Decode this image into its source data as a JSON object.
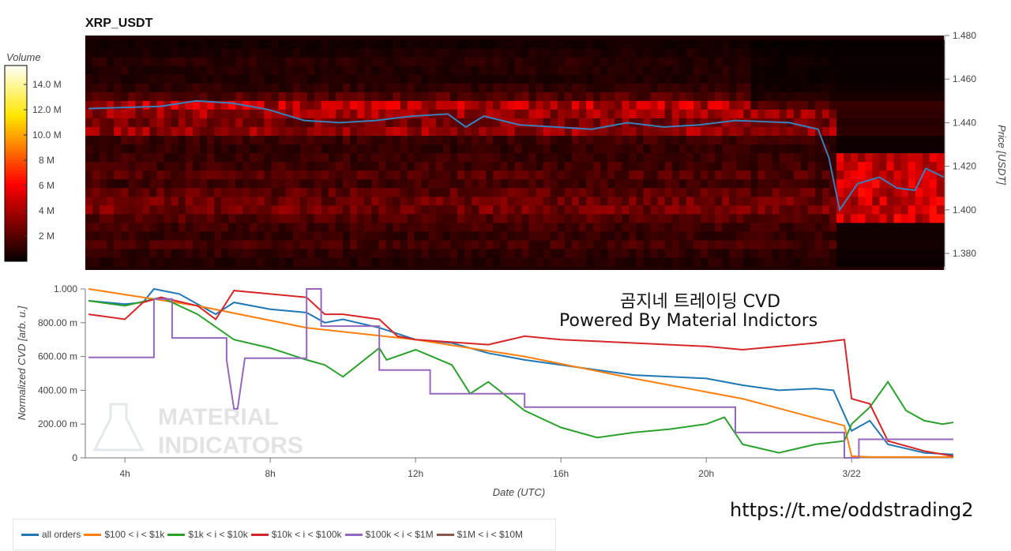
{
  "title": "XRP_USDT",
  "overlay": {
    "line1": "곰지네 트레이딩 CVD",
    "line2": "Powered By Material Indictors",
    "link": "https://t.me/oddstrading2"
  },
  "watermark": {
    "line1": "MATERIAL",
    "line2": "INDICATORS"
  },
  "colorbar": {
    "title": "Volume",
    "ticks": [
      {
        "v": 2,
        "label": "2 M"
      },
      {
        "v": 4,
        "label": "4 M"
      },
      {
        "v": 6,
        "label": "6 M"
      },
      {
        "v": 8,
        "label": "8 M"
      },
      {
        "v": 10,
        "label": "10.0 M"
      },
      {
        "v": 12,
        "label": "12.0 M"
      },
      {
        "v": 14,
        "label": "14.0 M"
      }
    ],
    "max": 15.5
  },
  "chart_data": [
    {
      "type": "heatmap",
      "title": "XRP_USDT",
      "ylabel": "Price [USDT]",
      "ylim": [
        1.3724,
        1.48
      ],
      "xlim": [
        2.91,
        26.8
      ],
      "yticks": [
        {
          "v": 1.38,
          "label": "1.380"
        },
        {
          "v": 1.4,
          "label": "1.400"
        },
        {
          "v": 1.42,
          "label": "1.420"
        },
        {
          "v": 1.44,
          "label": "1.440"
        },
        {
          "v": 1.46,
          "label": "1.460"
        },
        {
          "v": 1.48,
          "label": "1.480"
        }
      ],
      "bands": [
        [
          1.476,
          0.5
        ],
        [
          1.472,
          0.7
        ],
        [
          1.468,
          1.0
        ],
        [
          1.464,
          0.9
        ],
        [
          1.46,
          0.8
        ],
        [
          1.456,
          1.2
        ],
        [
          1.452,
          2.0
        ],
        [
          1.448,
          4.5
        ],
        [
          1.444,
          3.8
        ],
        [
          1.44,
          3.0
        ],
        [
          1.436,
          3.6
        ],
        [
          1.432,
          1.5
        ],
        [
          1.428,
          1.2
        ],
        [
          1.424,
          1.4
        ],
        [
          1.42,
          1.6
        ],
        [
          1.416,
          2.0
        ],
        [
          1.412,
          1.5
        ],
        [
          1.408,
          2.2
        ],
        [
          1.404,
          2.6
        ],
        [
          1.4,
          2.8
        ],
        [
          1.396,
          2.0
        ],
        [
          1.392,
          1.6
        ],
        [
          1.388,
          1.3
        ],
        [
          1.384,
          1.7
        ],
        [
          1.38,
          1.2
        ],
        [
          1.376,
          0.9
        ]
      ],
      "price_series": {
        "name": "price",
        "color": "#3b7fb8",
        "x": [
          3,
          4,
          5,
          6,
          7,
          8,
          9,
          10,
          11,
          12,
          13,
          13.5,
          14,
          15,
          16,
          17,
          18,
          19,
          20,
          21,
          22.5,
          23.3,
          23.6,
          23.9,
          24.4,
          25,
          25.5,
          26,
          26.3,
          26.8
        ],
        "y": [
          1.4465,
          1.447,
          1.4475,
          1.45,
          1.449,
          1.446,
          1.441,
          1.44,
          1.441,
          1.443,
          1.444,
          1.438,
          1.443,
          1.439,
          1.438,
          1.437,
          1.44,
          1.438,
          1.439,
          1.441,
          1.44,
          1.437,
          1.424,
          1.4,
          1.412,
          1.415,
          1.41,
          1.409,
          1.419,
          1.415
        ]
      }
    },
    {
      "type": "line",
      "xlabel": "Date (UTC)",
      "ylabel": "Normalized CVD [arb. u.]",
      "ylim": [
        0,
        1
      ],
      "xlim": [
        2.91,
        26.8
      ],
      "xticks": [
        {
          "v": 4,
          "label": "4h"
        },
        {
          "v": 8,
          "label": "8h"
        },
        {
          "v": 12,
          "label": "12h"
        },
        {
          "v": 16,
          "label": "16h"
        },
        {
          "v": 20,
          "label": "20h"
        },
        {
          "v": 24,
          "label": "3/22"
        }
      ],
      "yticks": [
        {
          "v": 0,
          "label": "0"
        },
        {
          "v": 0.2,
          "label": "200.00 m"
        },
        {
          "v": 0.4,
          "label": "400.00 m"
        },
        {
          "v": 0.6,
          "label": "600.00 m"
        },
        {
          "v": 0.8,
          "label": "800.00 m"
        },
        {
          "v": 1,
          "label": "1.000"
        }
      ],
      "series": [
        {
          "name": "all orders",
          "color": "#1f77b4",
          "x": [
            3,
            4,
            4.5,
            4.8,
            5.5,
            6.5,
            7,
            8,
            9,
            9.5,
            10,
            11,
            12,
            13,
            14,
            15,
            16,
            17,
            18,
            19,
            20,
            21,
            22,
            23,
            23.5,
            24,
            24.5,
            25,
            26,
            26.8
          ],
          "y": [
            0.93,
            0.91,
            0.92,
            1.0,
            0.97,
            0.85,
            0.92,
            0.88,
            0.86,
            0.8,
            0.82,
            0.77,
            0.7,
            0.68,
            0.62,
            0.58,
            0.55,
            0.52,
            0.49,
            0.48,
            0.47,
            0.43,
            0.4,
            0.41,
            0.4,
            0.16,
            0.22,
            0.08,
            0.03,
            0.02
          ]
        },
        {
          "name": "$100 < i < $1k",
          "color": "#ff7f0e",
          "x": [
            3,
            6,
            9,
            12,
            15,
            18,
            21,
            23.8,
            24,
            24.5,
            26.8
          ],
          "y": [
            1.0,
            0.9,
            0.77,
            0.7,
            0.6,
            0.47,
            0.35,
            0.19,
            0.01,
            0.005,
            0.005
          ]
        },
        {
          "name": "$1k < i < $10k",
          "color": "#2ca02c",
          "x": [
            3,
            4,
            5,
            6,
            7,
            8,
            9,
            9.5,
            10,
            11,
            11.2,
            12,
            13,
            13.5,
            14,
            15,
            16,
            17,
            18,
            19,
            20,
            20.5,
            21,
            22,
            23,
            23.8,
            24,
            24.5,
            25,
            25.5,
            26,
            26.5,
            26.8
          ],
          "y": [
            0.93,
            0.9,
            0.95,
            0.85,
            0.7,
            0.65,
            0.58,
            0.55,
            0.48,
            0.65,
            0.58,
            0.64,
            0.55,
            0.38,
            0.45,
            0.28,
            0.18,
            0.12,
            0.15,
            0.17,
            0.2,
            0.24,
            0.08,
            0.03,
            0.08,
            0.1,
            0.2,
            0.3,
            0.45,
            0.28,
            0.22,
            0.2,
            0.21
          ]
        },
        {
          "name": "$10k < i < $100k",
          "color": "#d62728",
          "x": [
            3,
            4,
            4.5,
            5,
            6,
            6.5,
            7,
            8,
            9,
            9.5,
            10,
            11,
            11.5,
            12,
            14,
            15,
            16,
            18,
            20,
            21,
            22,
            23,
            23.8,
            24,
            24.5,
            25,
            26,
            26.8
          ],
          "y": [
            0.85,
            0.82,
            0.92,
            0.95,
            0.9,
            0.82,
            0.99,
            0.97,
            0.95,
            0.85,
            0.85,
            0.82,
            0.72,
            0.7,
            0.67,
            0.72,
            0.7,
            0.68,
            0.66,
            0.64,
            0.66,
            0.68,
            0.7,
            0.35,
            0.32,
            0.1,
            0.04,
            0.01
          ]
        },
        {
          "name": "$100k < i < $1M",
          "color": "#9467bd",
          "x": [
            3,
            4.8,
            4.8,
            5.3,
            5.3,
            6.8,
            6.8,
            7.0,
            7.1,
            7.3,
            9.0,
            9.0,
            9.4,
            9.4,
            11.0,
            11.0,
            12.4,
            12.4,
            15.0,
            15.0,
            20.8,
            20.8,
            23.8,
            23.8,
            24.2,
            24.2,
            26.8
          ],
          "y": [
            0.595,
            0.595,
            0.94,
            0.94,
            0.71,
            0.71,
            0.58,
            0.29,
            0.29,
            0.59,
            0.59,
            1.0,
            1.0,
            0.78,
            0.78,
            0.52,
            0.52,
            0.38,
            0.38,
            0.3,
            0.3,
            0.15,
            0.15,
            0.0,
            0.0,
            0.11,
            0.11
          ]
        },
        {
          "name": "$1M < i < $10M",
          "color": "#8c564b",
          "x": [],
          "y": []
        }
      ]
    }
  ]
}
